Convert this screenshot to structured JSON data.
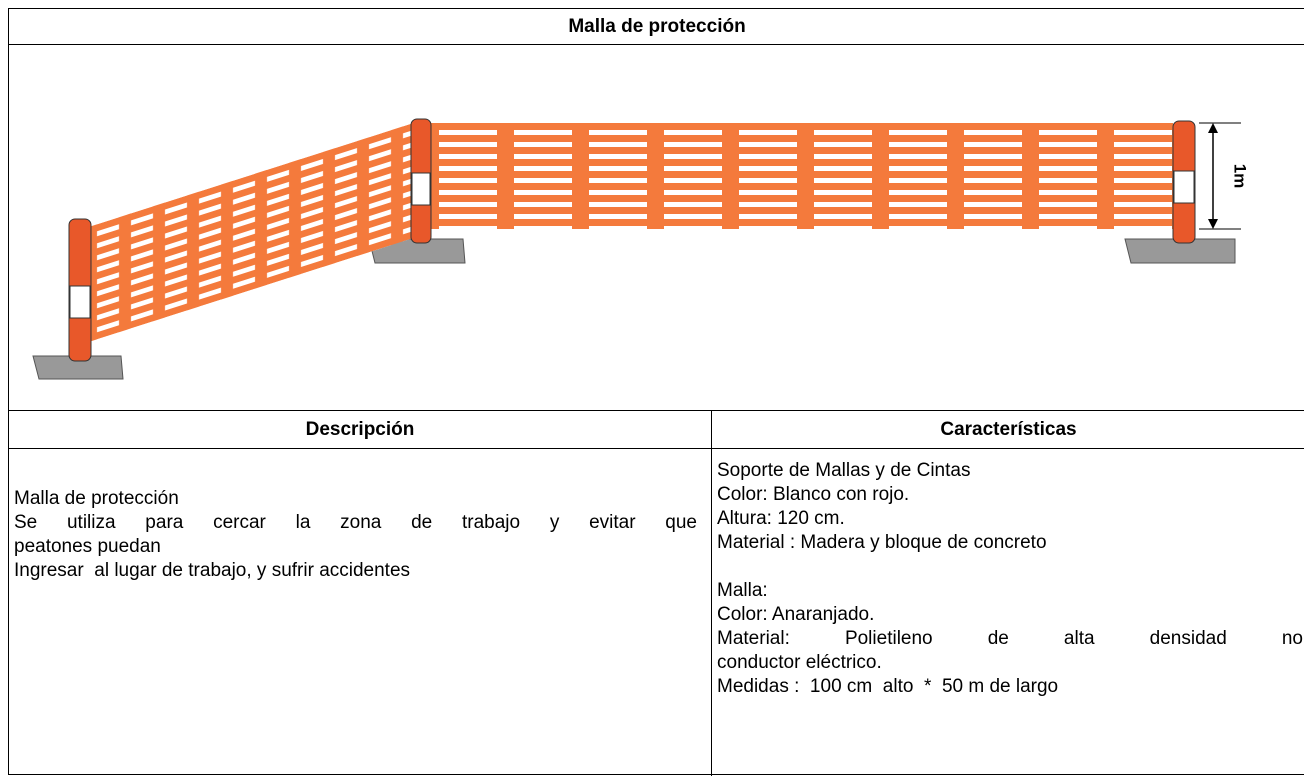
{
  "title": "Malla de protección",
  "figure": {
    "dimension_label": "1m"
  },
  "table": {
    "headers": [
      "Descripción",
      "Características"
    ],
    "description": [
      "Malla de protección",
      "Se utiliza para cercar la zona de trabajo y evitar que",
      "peatones puedan",
      "Ingresar  al lugar de trabajo, y sufrir accidentes"
    ],
    "support": [
      "Soporte de Mallas y de Cintas",
      "Color: Blanco con rojo.",
      "Altura: 120 cm.",
      "Material : Madera y bloque de concreto"
    ],
    "mesh": [
      "Malla:",
      "Color: Anaranjado.",
      "Material:  Polietileno  de  alta  densidad  no",
      "conductor eléctrico.",
      "Medidas :  100 cm  alto  *  50 m de largo"
    ]
  }
}
